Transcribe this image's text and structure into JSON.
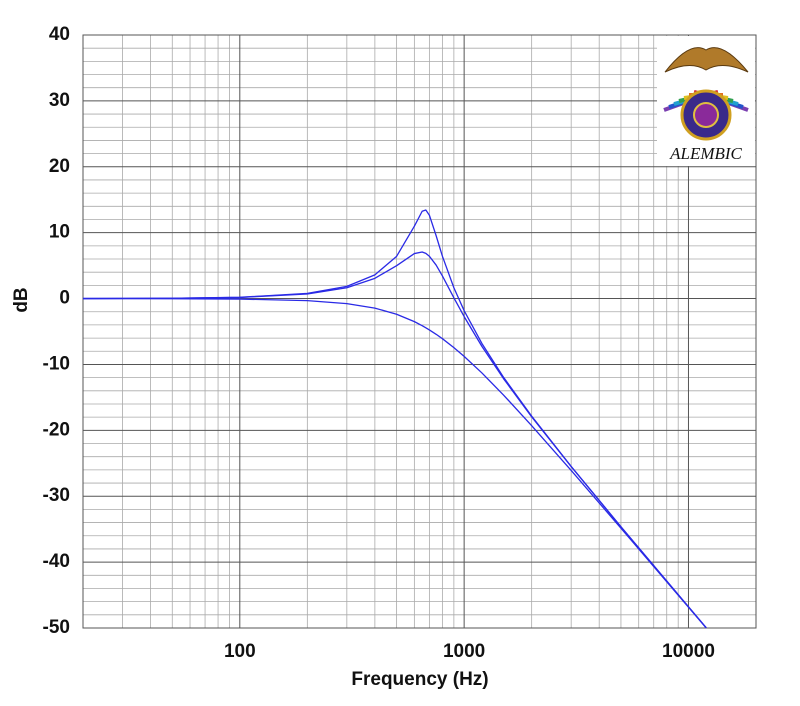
{
  "chart_data": {
    "type": "line",
    "x_label": "Frequency (Hz)",
    "y_label": "dB",
    "logo_text": "ALEMBIC",
    "xscale": "log",
    "grid": true,
    "xlim": [
      20,
      20000
    ],
    "ylim": [
      -50,
      40
    ],
    "xticks": [
      100,
      1000,
      10000
    ],
    "yticks": [
      -50,
      -40,
      -30,
      -20,
      -10,
      0,
      10,
      20,
      30,
      40
    ],
    "xminorticks": [
      20,
      30,
      40,
      50,
      60,
      70,
      80,
      90,
      200,
      300,
      400,
      500,
      600,
      700,
      800,
      900,
      2000,
      3000,
      4000,
      5000,
      6000,
      7000,
      8000,
      9000,
      20000
    ],
    "yminorticks": [
      -48,
      -46,
      -44,
      -42,
      -38,
      -36,
      -34,
      -32,
      -28,
      -26,
      -24,
      -22,
      -18,
      -16,
      -14,
      -12,
      -8,
      -6,
      -4,
      -2,
      2,
      4,
      6,
      8,
      12,
      14,
      16,
      18,
      22,
      24,
      26,
      28,
      32,
      34,
      36,
      38
    ],
    "x": [
      20,
      50,
      100,
      200,
      300,
      400,
      500,
      600,
      650,
      675,
      700,
      750,
      800,
      900,
      1000,
      1200,
      1500,
      2000,
      3000,
      5000,
      10000,
      12000
    ],
    "series": [
      {
        "color": "#2a2ae6",
        "values": [
          0.0,
          0.05,
          0.19,
          0.78,
          1.85,
          3.6,
          6.41,
          10.98,
          13.25,
          13.44,
          12.65,
          9.55,
          6.43,
          1.64,
          -1.84,
          -6.82,
          -11.97,
          -17.85,
          -25.47,
          -34.63,
          -46.79,
          -49.97
        ]
      },
      {
        "color": "#2a2ae6",
        "values": [
          0.0,
          0.04,
          0.17,
          0.7,
          1.64,
          3.07,
          4.99,
          6.83,
          7.06,
          6.85,
          6.42,
          5.08,
          3.43,
          0.12,
          -2.74,
          -7.26,
          -12.18,
          -17.95,
          -25.51,
          -34.64,
          -46.79,
          -49.97
        ]
      },
      {
        "color": "#2a2ae6",
        "values": [
          0.0,
          -0.02,
          -0.08,
          -0.32,
          -0.77,
          -1.45,
          -2.38,
          -3.5,
          -4.12,
          -4.44,
          -4.76,
          -5.42,
          -6.09,
          -7.44,
          -8.77,
          -11.29,
          -14.66,
          -19.29,
          -26.09,
          -34.85,
          -46.84,
          -50.0
        ]
      }
    ]
  }
}
